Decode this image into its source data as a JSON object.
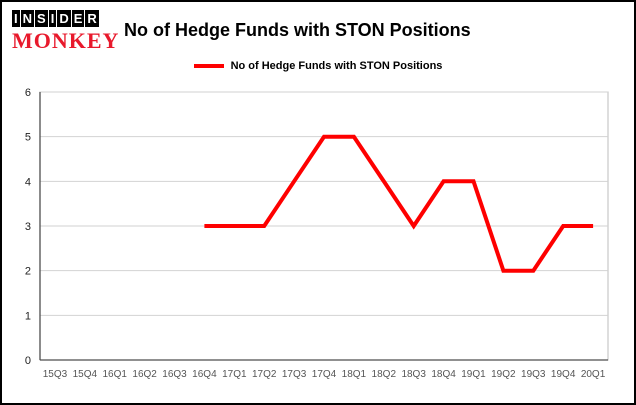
{
  "brand": {
    "line1": "INSIDER",
    "line2": "MONKEY"
  },
  "header": {
    "title": "No of Hedge Funds with STON Positions"
  },
  "legend": {
    "label": "No of Hedge Funds with STON Positions"
  },
  "colors": {
    "series": "#fe0000",
    "brand_red": "#e8192c",
    "grid": "#d2d2d2",
    "box": "#bdbdbd",
    "axis": "#4d4d4d",
    "tick_label": "#222222",
    "x_label": "#555555"
  },
  "chart_data": {
    "type": "line",
    "title": "No of Hedge Funds with STON Positions",
    "xlabel": "",
    "ylabel": "",
    "categories": [
      "15Q3",
      "15Q4",
      "16Q1",
      "16Q2",
      "16Q3",
      "16Q4",
      "17Q1",
      "17Q2",
      "17Q3",
      "17Q4",
      "18Q1",
      "18Q2",
      "18Q3",
      "18Q4",
      "19Q1",
      "19Q2",
      "19Q3",
      "19Q4",
      "20Q1"
    ],
    "series": [
      {
        "name": "No of Hedge Funds with STON Positions",
        "color": "#fe0000",
        "values": [
          null,
          null,
          null,
          null,
          null,
          3,
          3,
          3,
          4,
          5,
          5,
          4,
          3,
          4,
          4,
          2,
          2,
          3,
          3
        ]
      }
    ],
    "ylim": [
      0,
      6
    ],
    "yticks": [
      0,
      1,
      2,
      3,
      4,
      5,
      6
    ],
    "grid": true,
    "legend_position": "top"
  }
}
